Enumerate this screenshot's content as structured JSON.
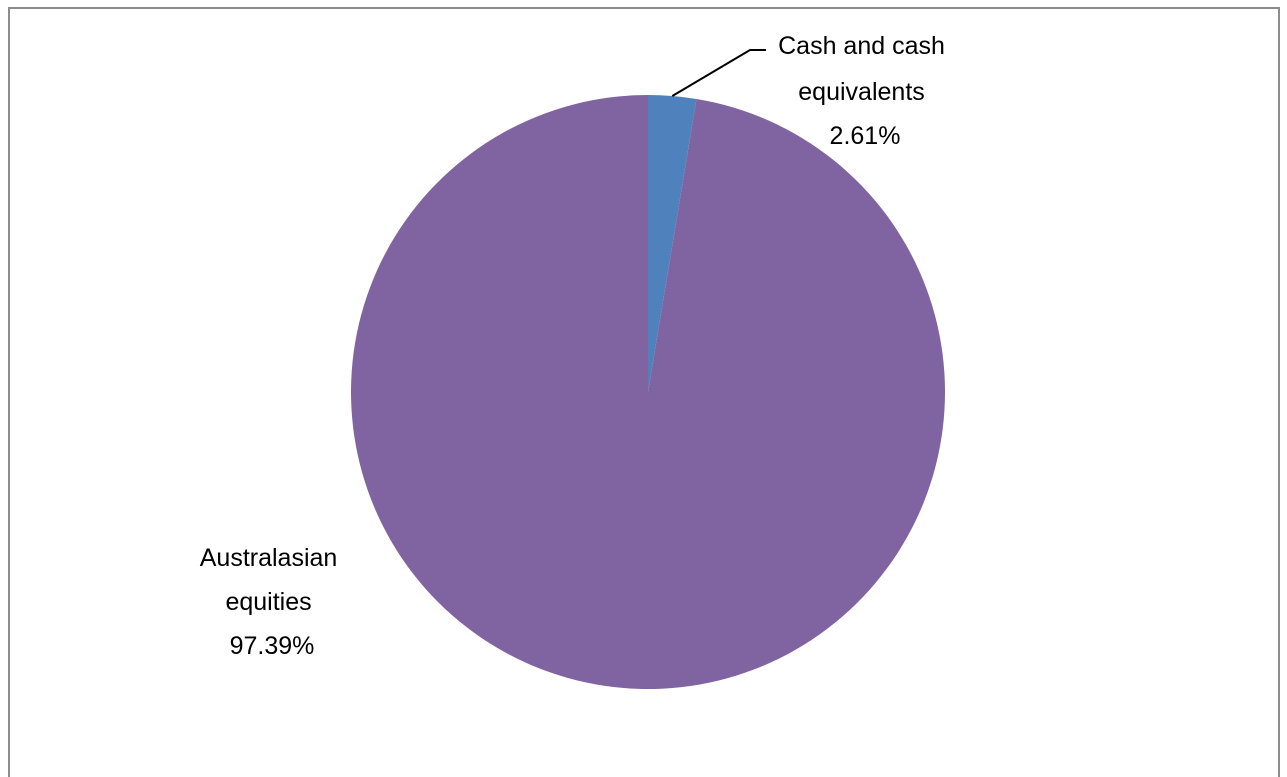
{
  "chart_data": {
    "type": "pie",
    "start_angle_deg": 0,
    "direction": "clockwise",
    "slices": [
      {
        "label_lines": [
          "Cash and cash",
          "equivalents"
        ],
        "percent_label": "2.61%",
        "value": 2.61,
        "color": "#4f81bd"
      },
      {
        "label_lines": [
          "Australasian",
          "equities"
        ],
        "percent_label": "97.39%",
        "value": 97.39,
        "color": "#8064a2"
      }
    ],
    "legend": "none"
  }
}
